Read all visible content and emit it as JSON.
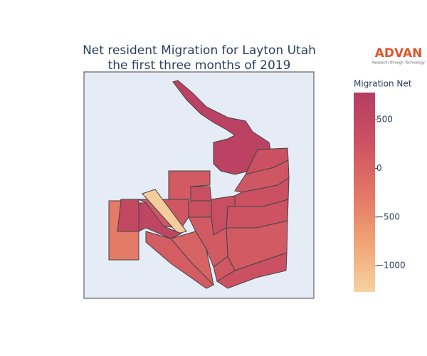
{
  "chart_data": {
    "type": "choropleth",
    "title_lines": [
      "Net resident Migration for Layton Utah",
      "the first three months of 2019"
    ],
    "logo": {
      "name": "ADVAN",
      "tagline": "Research through Technology"
    },
    "colorbar_title": "Migration Net",
    "zlim": [
      -1270,
      780
    ],
    "zticks": [
      500,
      0,
      {
        "value": -500,
        "label": "−500"
      },
      {
        "value": -1000,
        "label": "−1000"
      }
    ],
    "colorscale": [
      "#f6d2a2",
      "#f0a374",
      "#e27566",
      "#cc5262",
      "#b53d63"
    ],
    "values": [
      650,
      300,
      200,
      300,
      250,
      150,
      300,
      350,
      150,
      350,
      300,
      200,
      500,
      -300,
      -1200,
      550,
      100,
      0,
      150,
      200
    ]
  }
}
